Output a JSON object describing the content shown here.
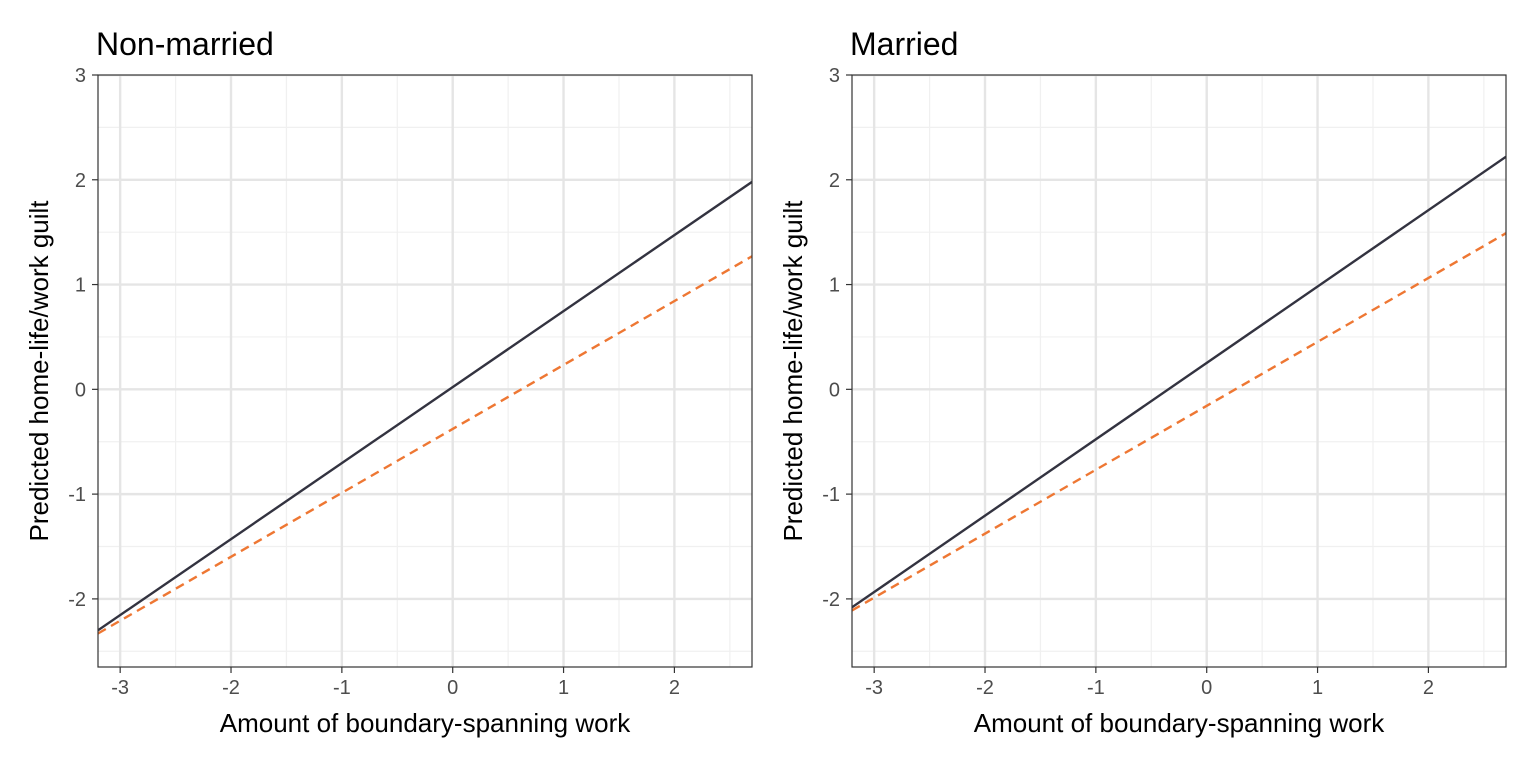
{
  "colors": {
    "background": "#ffffff",
    "grid_major": "#e5e5e5",
    "grid_minor": "#f0f0f0",
    "panel_border": "#333333",
    "tick_text": "#4d4d4d",
    "solid_series": "#333340",
    "dashed_series": "#ee7733"
  },
  "chart_data": [
    {
      "type": "line",
      "title": "Non-married",
      "xlabel": "Amount of boundary-spanning work",
      "ylabel": "Predicted home-life/work guilt",
      "xlim": [
        -3.2,
        2.7
      ],
      "ylim": [
        -2.65,
        3.0
      ],
      "x_ticks": [
        -3,
        -2,
        -1,
        0,
        1,
        2
      ],
      "y_ticks": [
        -2,
        -1,
        0,
        1,
        2,
        3
      ],
      "grid": true,
      "series": [
        {
          "style": "solid",
          "color": "#333340",
          "x": [
            -3.2,
            2.7
          ],
          "y": [
            -2.3,
            1.98
          ]
        },
        {
          "style": "dashed",
          "color": "#ee7733",
          "x": [
            -3.2,
            2.7
          ],
          "y": [
            -2.33,
            1.27
          ]
        }
      ]
    },
    {
      "type": "line",
      "title": "Married",
      "xlabel": "Amount of boundary-spanning work",
      "ylabel": "Predicted home-life/work guilt",
      "xlim": [
        -3.2,
        2.7
      ],
      "ylim": [
        -2.65,
        3.0
      ],
      "x_ticks": [
        -3,
        -2,
        -1,
        0,
        1,
        2
      ],
      "y_ticks": [
        -2,
        -1,
        0,
        1,
        2,
        3
      ],
      "grid": true,
      "series": [
        {
          "style": "solid",
          "color": "#333340",
          "x": [
            -3.2,
            2.7
          ],
          "y": [
            -2.08,
            2.22
          ]
        },
        {
          "style": "dashed",
          "color": "#ee7733",
          "x": [
            -3.2,
            2.7
          ],
          "y": [
            -2.11,
            1.49
          ]
        }
      ]
    }
  ]
}
